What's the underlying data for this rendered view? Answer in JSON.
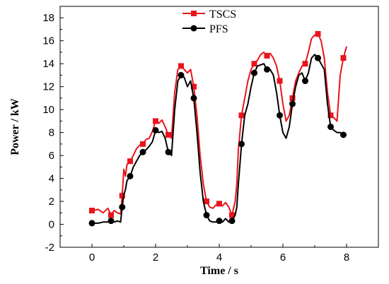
{
  "chart_data": {
    "type": "line",
    "xlabel": "Time / s",
    "ylabel": "Power  / kW",
    "xlim": [
      -1,
      9
    ],
    "ylim": [
      -2,
      19
    ],
    "xticks": [
      0,
      2,
      4,
      6,
      8
    ],
    "yticks": [
      -2,
      0,
      2,
      4,
      6,
      8,
      10,
      12,
      14,
      16,
      18
    ],
    "grid": false,
    "legend_position": "top-center",
    "series": [
      {
        "name": "TSCS",
        "color": "#e8141c",
        "marker": "square",
        "x": [
          0.0,
          0.2,
          0.35,
          0.5,
          0.6,
          0.7,
          0.8,
          0.9,
          0.95,
          1.0,
          1.05,
          1.1,
          1.2,
          1.3,
          1.4,
          1.5,
          1.6,
          1.7,
          1.8,
          1.9,
          2.0,
          2.1,
          2.2,
          2.3,
          2.4,
          2.5,
          2.6,
          2.7,
          2.8,
          2.9,
          3.0,
          3.1,
          3.2,
          3.3,
          3.4,
          3.5,
          3.6,
          3.7,
          3.8,
          3.9,
          4.0,
          4.1,
          4.2,
          4.3,
          4.4,
          4.5,
          4.55,
          4.6,
          4.7,
          4.8,
          4.9,
          5.0,
          5.1,
          5.2,
          5.3,
          5.4,
          5.5,
          5.6,
          5.7,
          5.8,
          5.9,
          6.0,
          6.1,
          6.2,
          6.3,
          6.4,
          6.5,
          6.6,
          6.7,
          6.8,
          6.9,
          7.0,
          7.1,
          7.2,
          7.3,
          7.4,
          7.5,
          7.6,
          7.7,
          7.8,
          7.9,
          8.0
        ],
        "y": [
          1.2,
          1.3,
          1.0,
          1.4,
          0.8,
          1.2,
          1.0,
          0.9,
          2.5,
          4.8,
          4.2,
          5.2,
          5.5,
          6.0,
          6.6,
          6.9,
          7.0,
          7.4,
          7.5,
          8.1,
          9.0,
          8.8,
          9.1,
          8.5,
          7.8,
          7.5,
          11.5,
          13.5,
          13.8,
          13.5,
          13.2,
          13.5,
          12.0,
          9.5,
          6.0,
          3.5,
          2.0,
          1.5,
          1.4,
          1.7,
          1.8,
          1.6,
          1.9,
          1.5,
          0.8,
          2.0,
          3.5,
          6.5,
          9.5,
          11.0,
          12.5,
          13.5,
          14.0,
          14.3,
          14.8,
          15.0,
          14.7,
          14.9,
          14.5,
          13.8,
          12.5,
          10.5,
          9.0,
          9.5,
          11.0,
          12.5,
          13.2,
          13.8,
          14.0,
          15.0,
          16.2,
          16.5,
          16.6,
          16.0,
          14.5,
          11.5,
          9.5,
          9.3,
          9.0,
          13.0,
          14.5,
          15.5
        ]
      },
      {
        "name": "PFS",
        "color": "#000000",
        "marker": "circle",
        "x": [
          0.0,
          0.2,
          0.35,
          0.5,
          0.6,
          0.7,
          0.8,
          0.9,
          0.95,
          1.0,
          1.05,
          1.1,
          1.2,
          1.3,
          1.4,
          1.5,
          1.6,
          1.7,
          1.8,
          1.9,
          2.0,
          2.1,
          2.2,
          2.3,
          2.4,
          2.5,
          2.6,
          2.7,
          2.8,
          2.9,
          3.0,
          3.1,
          3.2,
          3.3,
          3.4,
          3.5,
          3.6,
          3.7,
          3.8,
          3.9,
          4.0,
          4.1,
          4.2,
          4.3,
          4.4,
          4.5,
          4.55,
          4.6,
          4.7,
          4.8,
          4.9,
          5.0,
          5.1,
          5.2,
          5.3,
          5.4,
          5.5,
          5.6,
          5.7,
          5.8,
          5.9,
          6.0,
          6.1,
          6.2,
          6.3,
          6.4,
          6.5,
          6.6,
          6.7,
          6.8,
          6.9,
          7.0,
          7.1,
          7.2,
          7.3,
          7.4,
          7.5,
          7.6,
          7.7,
          7.8,
          7.9,
          8.0
        ],
        "y": [
          0.1,
          0.1,
          0.2,
          0.2,
          0.3,
          0.2,
          0.3,
          0.2,
          1.5,
          2.6,
          3.0,
          3.8,
          4.2,
          5.0,
          5.5,
          6.0,
          6.3,
          6.5,
          6.8,
          7.2,
          8.2,
          8.0,
          8.1,
          7.5,
          6.3,
          6.0,
          10.0,
          12.5,
          13.0,
          12.8,
          12.0,
          12.5,
          11.0,
          8.0,
          4.5,
          2.0,
          0.8,
          0.3,
          0.2,
          0.2,
          0.3,
          0.2,
          0.5,
          0.2,
          0.3,
          0.8,
          1.5,
          3.5,
          7.0,
          9.5,
          10.5,
          12.0,
          13.2,
          13.8,
          13.9,
          14.0,
          13.5,
          13.5,
          13.0,
          11.5,
          9.5,
          8.0,
          7.5,
          8.5,
          10.5,
          12.0,
          13.0,
          13.2,
          12.5,
          13.2,
          14.5,
          14.8,
          14.5,
          14.0,
          13.5,
          10.5,
          8.5,
          8.2,
          8.0,
          8.0,
          7.8,
          7.8
        ]
      }
    ]
  }
}
